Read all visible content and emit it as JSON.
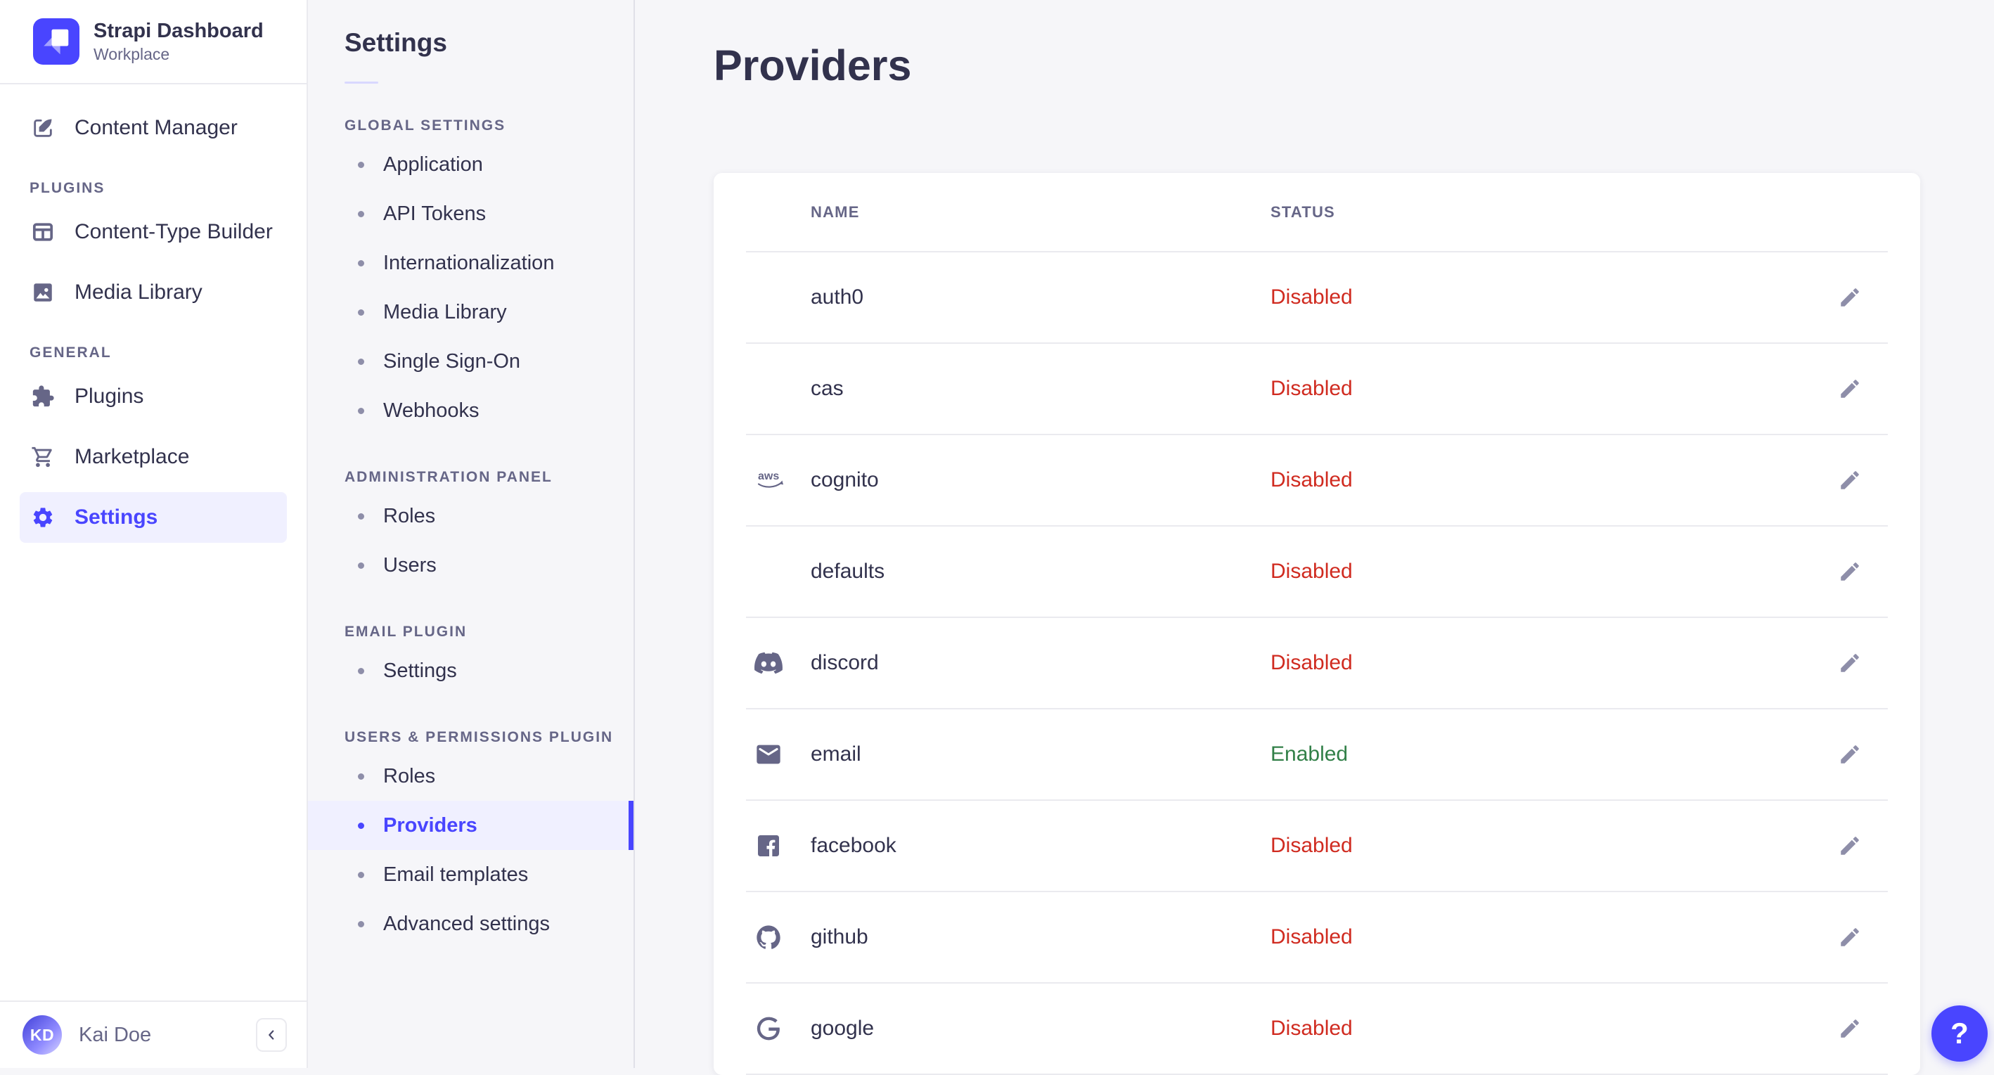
{
  "colors": {
    "accent": "#4945ff",
    "accent_bg": "#f0f0ff",
    "text": "#32324d",
    "muted": "#666687",
    "icon": "#8e8ea9",
    "divider": "#eaeaef",
    "background": "#f6f6f9",
    "status_enabled": "#328048",
    "status_disabled": "#d02b20"
  },
  "brand": {
    "title": "Strapi Dashboard",
    "subtitle": "Workplace",
    "logo_icon": "strapi-logo"
  },
  "main_nav": {
    "sections": [
      {
        "label": "",
        "items": [
          {
            "label": "Content Manager",
            "icon": "content-manager-icon",
            "active": false
          }
        ]
      },
      {
        "label": "PLUGINS",
        "items": [
          {
            "label": "Content-Type Builder",
            "icon": "content-type-builder-icon",
            "active": false
          },
          {
            "label": "Media Library",
            "icon": "media-library-icon",
            "active": false
          }
        ]
      },
      {
        "label": "GENERAL",
        "items": [
          {
            "label": "Plugins",
            "icon": "plugins-icon",
            "active": false
          },
          {
            "label": "Marketplace",
            "icon": "marketplace-icon",
            "active": false
          },
          {
            "label": "Settings",
            "icon": "settings-gear-icon",
            "active": true
          }
        ]
      }
    ]
  },
  "user": {
    "name": "Kai Doe",
    "initials": "KD"
  },
  "collapse": {
    "icon": "chevron-left-icon"
  },
  "settings_nav": {
    "title": "Settings",
    "sections": [
      {
        "label": "GLOBAL SETTINGS",
        "items": [
          {
            "label": "Application",
            "active": false
          },
          {
            "label": "API Tokens",
            "active": false
          },
          {
            "label": "Internationalization",
            "active": false
          },
          {
            "label": "Media Library",
            "active": false
          },
          {
            "label": "Single Sign-On",
            "active": false
          },
          {
            "label": "Webhooks",
            "active": false
          }
        ]
      },
      {
        "label": "ADMINISTRATION PANEL",
        "items": [
          {
            "label": "Roles",
            "active": false
          },
          {
            "label": "Users",
            "active": false
          }
        ]
      },
      {
        "label": "EMAIL PLUGIN",
        "items": [
          {
            "label": "Settings",
            "active": false
          }
        ]
      },
      {
        "label": "USERS & PERMISSIONS PLUGIN",
        "items": [
          {
            "label": "Roles",
            "active": false
          },
          {
            "label": "Providers",
            "active": true
          },
          {
            "label": "Email templates",
            "active": false
          },
          {
            "label": "Advanced settings",
            "active": false
          }
        ]
      }
    ]
  },
  "page": {
    "title": "Providers",
    "table": {
      "columns": [
        "NAME",
        "STATUS"
      ],
      "rows": [
        {
          "name": "auth0",
          "icon": null,
          "status": "Disabled"
        },
        {
          "name": "cas",
          "icon": null,
          "status": "Disabled"
        },
        {
          "name": "cognito",
          "icon": "aws-icon",
          "status": "Disabled"
        },
        {
          "name": "defaults",
          "icon": null,
          "status": "Disabled"
        },
        {
          "name": "discord",
          "icon": "discord-icon",
          "status": "Disabled"
        },
        {
          "name": "email",
          "icon": "email-icon",
          "status": "Enabled"
        },
        {
          "name": "facebook",
          "icon": "facebook-icon",
          "status": "Disabled"
        },
        {
          "name": "github",
          "icon": "github-icon",
          "status": "Disabled"
        },
        {
          "name": "google",
          "icon": "google-icon",
          "status": "Disabled"
        }
      ]
    }
  },
  "help": {
    "label": "?"
  }
}
